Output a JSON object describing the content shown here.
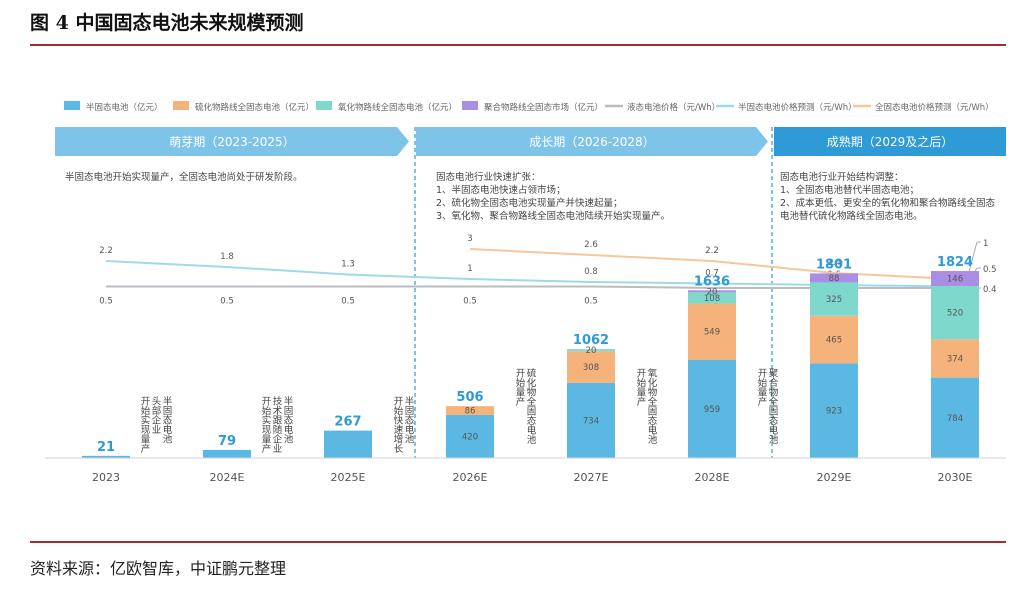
{
  "figure": {
    "title": "图 4    中国固态电池未来规模预测",
    "source": "资料来源：亿欧智库，中证鹏元整理"
  },
  "colors": {
    "semi_solid": "#5bb8e3",
    "sulfide": "#f5b27a",
    "oxide": "#7fd8cc",
    "polymer": "#a98ee3",
    "liquid_price": "#b8bdc4",
    "semi_price_forecast": "#9fd9e9",
    "all_solid_price_forecast": "#f7c79c",
    "phase_banner": "#7ec4e8",
    "phase_banner_dark": "#2e9ad6",
    "divider": "#3aa5dc",
    "rule": "#9b2f2f"
  },
  "legend": [
    {
      "label": "半固态电池（亿元）",
      "color_key": "semi_solid",
      "kind": "box"
    },
    {
      "label": "硫化物路线全固态电池（亿元）",
      "color_key": "sulfide",
      "kind": "box"
    },
    {
      "label": "氧化物路线全固态电池（亿元）",
      "color_key": "oxide",
      "kind": "box"
    },
    {
      "label": "聚合物路线全固态市场（亿元）",
      "color_key": "polymer",
      "kind": "box"
    },
    {
      "label": "液态电池价格（元/Wh）",
      "color_key": "liquid_price",
      "kind": "line"
    },
    {
      "label": "半固态电池价格预测（元/Wh）",
      "color_key": "semi_price_forecast",
      "kind": "line"
    },
    {
      "label": "全固态电池价格预测（元/Wh）",
      "color_key": "all_solid_price_forecast",
      "kind": "line"
    }
  ],
  "phases": [
    {
      "label": "萌芽期（2023-2025）",
      "desc": [
        "半固态电池开始实现量产，全固态电池尚处于研发阶段。"
      ]
    },
    {
      "label": "成长期（2026-2028）",
      "desc": [
        "固态电池行业快速扩张：",
        "1、半固态电池快速占领市场；",
        "2、硫化物全固态电池实现量产并快速起量；",
        "3、氧化物、聚合物路线全固态电池陆续开始实现量产。"
      ]
    },
    {
      "label": "成熟期（2029及之后）",
      "desc": [
        "固态电池行业开始结构调整：",
        "1、全固态电池替代半固态电池；",
        "2、成本更低、更安全的氧化物和聚合物路线全固态",
        "电池替代硫化物路线全固态电池。"
      ]
    }
  ],
  "chart_data": {
    "type": "bar",
    "stacked": true,
    "categories": [
      "2023",
      "2024E",
      "2025E",
      "2026E",
      "2027E",
      "2028E",
      "2029E",
      "2030E"
    ],
    "series": [
      {
        "name": "半固态电池（亿元）",
        "color_key": "semi_solid",
        "values": [
          21,
          79,
          267,
          420,
          734,
          959,
          923,
          784
        ]
      },
      {
        "name": "硫化物路线全固态电池（亿元）",
        "color_key": "sulfide",
        "values": [
          0,
          0,
          0,
          86,
          308,
          549,
          465,
          374
        ]
      },
      {
        "name": "氧化物路线全固态电池（亿元）",
        "color_key": "oxide",
        "values": [
          0,
          0,
          0,
          0,
          20,
          108,
          325,
          520
        ]
      },
      {
        "name": "聚合物路线全固态市场（亿元）",
        "color_key": "polymer",
        "values": [
          0,
          0,
          0,
          0,
          0,
          20,
          88,
          146
        ]
      }
    ],
    "totals": [
      21,
      79,
      267,
      506,
      1062,
      1636,
      1801,
      1824
    ],
    "segment_labels": [
      [
        null,
        null,
        null,
        null
      ],
      [
        null,
        null,
        null,
        null
      ],
      [
        null,
        null,
        null,
        null
      ],
      [
        "420",
        "86",
        null,
        null
      ],
      [
        "734",
        "308",
        "20",
        null
      ],
      [
        "959",
        "549",
        "108",
        "20"
      ],
      [
        "923",
        "465",
        "325",
        "88"
      ],
      [
        "784",
        "374",
        "520",
        "146"
      ]
    ],
    "bar_annotations": [
      [
        "半固态电池",
        "头部企业",
        "开始实现量产"
      ],
      [
        "半固态电池",
        "技术跟随企业",
        "开始实现量产"
      ],
      [
        "半固态电池",
        "开始快速增长"
      ],
      [
        "硫化物全固态电池",
        "开始量产"
      ],
      [
        "氧化物全固态电池",
        "开始量产"
      ],
      [
        "聚合物全固态电池",
        "开始量产"
      ],
      [],
      []
    ],
    "price_lines": [
      {
        "name": "半固态电池价格预测（元/Wh）",
        "color_key": "semi_price_forecast",
        "values": [
          2.2,
          1.8,
          1.3,
          1,
          0.8,
          0.7,
          0.6,
          0.5
        ],
        "labels": [
          "2.2",
          "1.8",
          "1.3",
          "1",
          "0.8",
          "0.7",
          "0.6",
          "0.5"
        ]
      },
      {
        "name": "全固态电池价格预测（元/Wh）",
        "color_key": "all_solid_price_forecast",
        "values": [
          null,
          null,
          null,
          3,
          2.6,
          2.2,
          1.4,
          1
        ],
        "labels": [
          null,
          null,
          null,
          "3",
          "2.6",
          "2.2",
          "1.4",
          "1"
        ]
      },
      {
        "name": "液态电池价格（元/Wh）",
        "color_key": "liquid_price",
        "values": [
          0.5,
          0.5,
          0.5,
          0.5,
          0.5,
          0.4,
          0.4,
          0.4
        ],
        "labels": [
          "0.5",
          "0.5",
          "0.5",
          "0.5",
          "0.5",
          "0.4",
          "0.4",
          "0.4"
        ]
      }
    ]
  }
}
